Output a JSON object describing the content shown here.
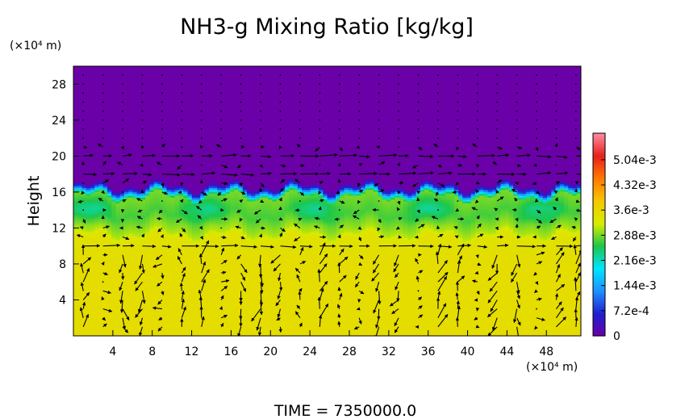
{
  "chart_data": {
    "type": "heatmap",
    "title": "NH3-g Mixing Ratio [kg/kg]",
    "ylabel": "Height",
    "y_unit": "(×10⁴ m)",
    "x_unit": "(×10⁴ m)",
    "xlim": [
      0,
      51.5
    ],
    "ylim": [
      0,
      30
    ],
    "x_ticks": [
      "4",
      "8",
      "12",
      "16",
      "20",
      "24",
      "28",
      "32",
      "36",
      "40",
      "44",
      "48"
    ],
    "y_ticks": [
      "4",
      "8",
      "12",
      "16",
      "20",
      "24",
      "28"
    ],
    "colorbar": {
      "labels": [
        "0",
        "7.2e-4",
        "1.44e-3",
        "2.16e-3",
        "2.88e-3",
        "3.6e-3",
        "4.32e-3",
        "5.04e-3"
      ],
      "values": [
        0,
        0.00072,
        0.00144,
        0.00216,
        0.00288,
        0.0036,
        0.00432,
        0.00504
      ],
      "max": 0.0058,
      "colors": [
        "#6a00a8",
        "#1f1fd0",
        "#1e90ff",
        "#00e5ff",
        "#1ec64a",
        "#d8ec00",
        "#f5c800",
        "#ff7a00",
        "#e8201a",
        "#ff8aa0"
      ]
    },
    "profile": {
      "heights": [
        0,
        8,
        11,
        11.5,
        12.5,
        13.5,
        14.5,
        15.5,
        16.3,
        16.8,
        30
      ],
      "values": [
        0.0035,
        0.0035,
        0.0034,
        0.0031,
        0.0029,
        0.0027,
        0.0028,
        0.0029,
        0.0008,
        0.0,
        0.0
      ]
    },
    "vector_field": "wind vectors overlaid across the domain; strong horizontal flow near heights 10, 18 and 20"
  },
  "footer": {
    "time_label": "TIME = 7350000.0"
  }
}
